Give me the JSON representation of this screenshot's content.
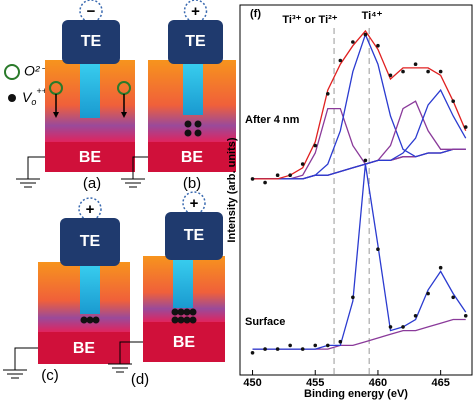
{
  "diagram": {
    "legend": {
      "ion": "O²⁻",
      "vacancy": {
        "symbol": "V",
        "sub": "o",
        "sup": "++"
      }
    },
    "panels": [
      {
        "label": "(a)",
        "top": "TE",
        "bottom": "BE",
        "sign": "−"
      },
      {
        "label": "(b)",
        "top": "TE",
        "bottom": "BE",
        "sign": "+"
      },
      {
        "label": "(c)",
        "top": "TE",
        "bottom": "BE",
        "sign": "+"
      },
      {
        "label": "(d)",
        "top": "TE",
        "bottom": "BE",
        "sign": "+"
      }
    ]
  },
  "chart_data": {
    "type": "line",
    "panel_label": "(f)",
    "x_label": "Binding energy (eV)",
    "y_label": "Intensity (arb. units)",
    "annotations": [
      "Ti³⁺ or Ti²⁺",
      "Ti⁴⁺",
      "After 4 nm",
      "Surface"
    ],
    "reference_lines": [
      456.5,
      459.3
    ],
    "xlim": [
      449,
      467.5
    ],
    "xticks": [
      450,
      455,
      460,
      465
    ],
    "ylim": [
      0,
      100
    ],
    "x": [
      450,
      451,
      452,
      453,
      454,
      455,
      456,
      457,
      458,
      459,
      460,
      461,
      462,
      463,
      464,
      465,
      466,
      467
    ],
    "series": [
      {
        "color": "#7a2a7a",
        "style": "line",
        "values": [
          53,
          53,
          53,
          53,
          53,
          54,
          54,
          55,
          56,
          57,
          58,
          58,
          59,
          59,
          60,
          60,
          61,
          61
        ]
      },
      {
        "color": "#8a3a9a",
        "style": "line",
        "values": [
          53,
          53,
          53,
          53,
          54,
          60,
          72,
          72,
          62,
          57,
          58,
          58,
          59,
          59,
          60,
          60,
          61,
          61
        ]
      },
      {
        "color": "#2b3bd0",
        "style": "line",
        "values": [
          53,
          53,
          53,
          53,
          53,
          54,
          57,
          66,
          82,
          92,
          84,
          70,
          61,
          59,
          60,
          60,
          61,
          61
        ]
      },
      {
        "color": "#8a3a9a",
        "style": "line",
        "values": [
          53,
          53,
          53,
          53,
          53,
          54,
          54,
          55,
          56,
          57,
          58,
          62,
          72,
          74,
          66,
          61,
          61,
          61
        ]
      },
      {
        "color": "#2b3bd0",
        "style": "line",
        "values": [
          53,
          53,
          53,
          53,
          53,
          54,
          54,
          55,
          56,
          57,
          58,
          58,
          60,
          64,
          73,
          77,
          70,
          64
        ]
      },
      {
        "color": "#e02020",
        "style": "line",
        "values": [
          53,
          53,
          53,
          54,
          56,
          63,
          77,
          84,
          89,
          93,
          88,
          80,
          83,
          83,
          83,
          81,
          74,
          66
        ]
      },
      {
        "color": "#111111",
        "style": "dots",
        "values": [
          53,
          52,
          54,
          54,
          57,
          62,
          76,
          85,
          90,
          92,
          89,
          81,
          82,
          84,
          82,
          82,
          74,
          67
        ]
      },
      {
        "color": "#8a3a9a",
        "style": "line",
        "values": [
          7,
          7,
          7,
          7,
          7,
          7,
          7,
          8,
          8,
          9,
          10,
          11,
          12,
          12,
          13,
          14,
          15,
          15
        ]
      },
      {
        "color": "#2b3bd0",
        "style": "line",
        "values": [
          7,
          7,
          7,
          7,
          7,
          7,
          8,
          8,
          20,
          57,
          35,
          12,
          13,
          15,
          23,
          28,
          22,
          17
        ]
      },
      {
        "color": "#111111",
        "style": "dots",
        "values": [
          6,
          7,
          7,
          8,
          7,
          8,
          8,
          9,
          21,
          58,
          34,
          13,
          13,
          16,
          22,
          29,
          21,
          16
        ]
      }
    ]
  }
}
